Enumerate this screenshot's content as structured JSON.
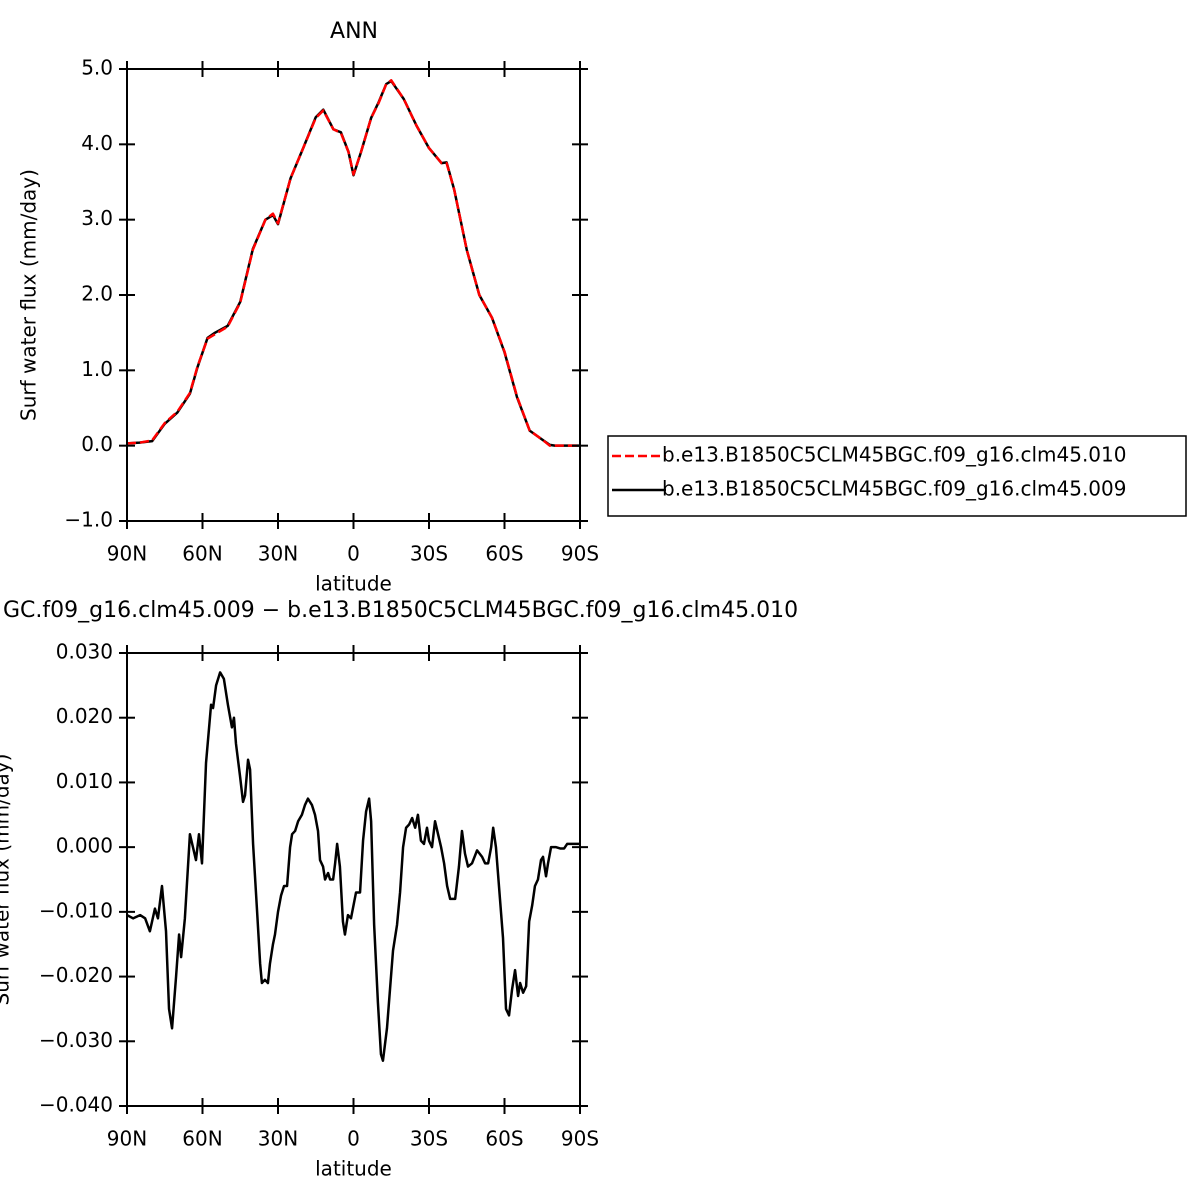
{
  "chart_data": [
    {
      "type": "line",
      "title": "ANN",
      "x_label": "latitude",
      "y_label": "Surf water flux (mm/day)",
      "x": [
        90,
        85,
        80,
        75,
        70,
        65,
        62,
        58,
        55,
        50,
        45,
        40,
        35,
        32,
        30,
        25,
        20,
        15,
        12,
        8,
        5,
        2,
        0,
        -3,
        -7,
        -10,
        -13,
        -15,
        -20,
        -25,
        -30,
        -35,
        -37,
        -40,
        -45,
        -50,
        -55,
        -60,
        -65,
        -70,
        -75,
        -78,
        -80,
        -85,
        -90
      ],
      "series": [
        {
          "name": "b.e13.B1850C5CLM45BGC.f09_g16.clm45.010",
          "color": "#ff0000",
          "line_style": "dashed",
          "values": [
            0.03,
            0.04,
            0.07,
            0.3,
            0.45,
            0.7,
            1.05,
            1.42,
            1.48,
            1.58,
            1.9,
            2.6,
            3.0,
            3.08,
            2.95,
            3.55,
            3.95,
            4.35,
            4.45,
            4.2,
            4.15,
            3.9,
            3.6,
            3.9,
            4.35,
            4.55,
            4.8,
            4.85,
            4.6,
            4.25,
            3.95,
            3.75,
            3.75,
            3.4,
            2.6,
            2.0,
            1.7,
            1.25,
            0.65,
            0.2,
            0.08,
            0.0,
            0.0,
            0.0,
            0.0
          ]
        },
        {
          "name": "b.e13.B1850C5CLM45BGC.f09_g16.clm45.009",
          "color": "#000000",
          "line_style": "solid",
          "values": [
            0.03,
            0.04,
            0.06,
            0.29,
            0.44,
            0.69,
            1.04,
            1.43,
            1.5,
            1.59,
            1.91,
            2.61,
            3.0,
            3.06,
            2.94,
            3.55,
            3.95,
            4.36,
            4.46,
            4.2,
            4.16,
            3.9,
            3.59,
            3.9,
            4.35,
            4.56,
            4.8,
            4.84,
            4.6,
            4.25,
            3.95,
            3.75,
            3.76,
            3.4,
            2.6,
            2.0,
            1.7,
            1.24,
            0.64,
            0.2,
            0.08,
            0.01,
            0.0,
            0.0,
            0.0
          ]
        }
      ],
      "xlim": [
        90,
        -90
      ],
      "xticks": [
        {
          "value": 90,
          "label": "90N"
        },
        {
          "value": 60,
          "label": "60N"
        },
        {
          "value": 30,
          "label": "30N"
        },
        0,
        {
          "value": -30,
          "label": "30S"
        },
        {
          "value": -60,
          "label": "60S"
        },
        {
          "value": -90,
          "label": "90S"
        }
      ],
      "ylim": [
        -1,
        5
      ],
      "yticks": [
        {
          "value": -1,
          "label": "−1.0"
        },
        {
          "value": 0,
          "label": "0.0"
        },
        {
          "value": 1,
          "label": "1.0"
        },
        {
          "value": 2,
          "label": "2.0"
        },
        {
          "value": 3,
          "label": "3.0"
        },
        {
          "value": 4,
          "label": "4.0"
        },
        {
          "value": 5,
          "label": "5.0"
        }
      ],
      "legend": "right"
    },
    {
      "type": "line",
      "title": "GC.f09_g16.clm45.009 − b.e13.B1850C5CLM45BGC.f09_g16.clm45.010",
      "x_label": "latitude",
      "y_label": "Surf water flux (mm/day)",
      "x": [
        90,
        87.6,
        84.8,
        82.8,
        80.9,
        78.9,
        77.7,
        76.1,
        74.5,
        73.3,
        72.1,
        70.5,
        69.3,
        68.5,
        67.0,
        65.0,
        63.8,
        62.6,
        61.4,
        60.2,
        58.6,
        56.6,
        55.8,
        54.6,
        53.0,
        51.5,
        49.9,
        48.3,
        47.5,
        46.7,
        45.1,
        43.9,
        43.1,
        41.9,
        41.1,
        39.9,
        38.3,
        37.1,
        36.4,
        35.2,
        34.0,
        33.2,
        32.0,
        31.2,
        30.0,
        28.8,
        27.6,
        26.4,
        25.2,
        24.4,
        23.2,
        22.0,
        20.5,
        19.3,
        18.1,
        16.5,
        15.3,
        14.1,
        13.3,
        12.1,
        11.3,
        10.1,
        9.3,
        8.1,
        7.3,
        6.5,
        5.4,
        4.2,
        3.4,
        2.2,
        1.0,
        -1.0,
        -2.6,
        -3.8,
        -5.0,
        -6.2,
        -7.0,
        -8.2,
        -9.7,
        -10.9,
        -11.7,
        -13.3,
        -14.5,
        -15.7,
        -17.3,
        -18.5,
        -19.7,
        -20.9,
        -22.1,
        -23.3,
        -24.5,
        -25.6,
        -26.8,
        -28.0,
        -29.2,
        -30.0,
        -31.2,
        -32.4,
        -33.6,
        -34.8,
        -36.0,
        -37.2,
        -38.4,
        -40.4,
        -41.9,
        -43.1,
        -44.3,
        -45.5,
        -47.1,
        -49.1,
        -51.1,
        -52.3,
        -53.5,
        -54.7,
        -55.5,
        -56.6,
        -58.2,
        -59.4,
        -60.6,
        -61.8,
        -63.0,
        -64.2,
        -65.4,
        -66.2,
        -67.4,
        -68.6,
        -69.8,
        -71.0,
        -72.1,
        -73.3,
        -74.5,
        -75.3,
        -76.5,
        -77.3,
        -78.5,
        -80.5,
        -82.1,
        -83.7,
        -84.9,
        -86.1,
        -88.0,
        -90
      ],
      "series": [
        {
          "color": "#000000",
          "line_style": "solid",
          "values": [
            -0.0105,
            -0.011,
            -0.0105,
            -0.011,
            -0.013,
            -0.0095,
            -0.011,
            -0.006,
            -0.013,
            -0.025,
            -0.028,
            -0.02,
            -0.0135,
            -0.017,
            -0.011,
            0.002,
            0.0,
            -0.002,
            0.002,
            -0.0025,
            0.013,
            0.022,
            0.0215,
            0.025,
            0.027,
            0.026,
            0.022,
            0.0185,
            0.02,
            0.016,
            0.011,
            0.007,
            0.008,
            0.0135,
            0.012,
            0.0005,
            -0.01,
            -0.018,
            -0.021,
            -0.0205,
            -0.021,
            -0.018,
            -0.015,
            -0.0135,
            -0.01,
            -0.0075,
            -0.006,
            -0.006,
            0.0,
            0.002,
            0.0025,
            0.004,
            0.005,
            0.0065,
            0.0075,
            0.0065,
            0.005,
            0.0025,
            -0.002,
            -0.003,
            -0.005,
            -0.004,
            -0.005,
            -0.005,
            -0.0025,
            0.0005,
            -0.003,
            -0.0115,
            -0.0135,
            -0.0105,
            -0.011,
            -0.007,
            -0.007,
            0.001,
            0.0055,
            0.0075,
            0.004,
            -0.012,
            -0.024,
            -0.032,
            -0.033,
            -0.028,
            -0.022,
            -0.016,
            -0.012,
            -0.007,
            0.0,
            0.003,
            0.0035,
            0.0045,
            0.003,
            0.005,
            0.001,
            0.0005,
            0.003,
            0.001,
            0.0,
            0.004,
            0.002,
            0.0,
            -0.0025,
            -0.006,
            -0.008,
            -0.008,
            -0.003,
            0.0025,
            -0.001,
            -0.003,
            -0.0025,
            -0.0005,
            -0.0015,
            -0.0025,
            -0.0025,
            0.0,
            0.003,
            0.0,
            -0.008,
            -0.014,
            -0.025,
            -0.026,
            -0.022,
            -0.019,
            -0.023,
            -0.021,
            -0.0225,
            -0.0215,
            -0.0115,
            -0.009,
            -0.006,
            -0.005,
            -0.002,
            -0.0015,
            -0.0045,
            -0.0025,
            0.0,
            0.0,
            -0.0002,
            -0.0002,
            0.0005,
            0.0005,
            0.0005,
            0.0005
          ]
        }
      ],
      "xlim": [
        90,
        -90
      ],
      "xticks": [
        {
          "value": 90,
          "label": "90N"
        },
        {
          "value": 60,
          "label": "60N"
        },
        {
          "value": 30,
          "label": "30N"
        },
        0,
        {
          "value": -30,
          "label": "30S"
        },
        {
          "value": -60,
          "label": "60S"
        },
        {
          "value": -90,
          "label": "90S"
        }
      ],
      "ylim": [
        -0.04,
        0.03
      ],
      "yticks": [
        {
          "value": -0.04,
          "label": "−0.040"
        },
        {
          "value": -0.03,
          "label": "−0.030"
        },
        {
          "value": -0.02,
          "label": "−0.020"
        },
        {
          "value": -0.01,
          "label": "−0.010"
        },
        {
          "value": 0,
          "label": "0.000"
        },
        {
          "value": 0.01,
          "label": "0.010"
        },
        {
          "value": 0.02,
          "label": "0.020"
        },
        {
          "value": 0.03,
          "label": "0.030"
        }
      ]
    }
  ]
}
